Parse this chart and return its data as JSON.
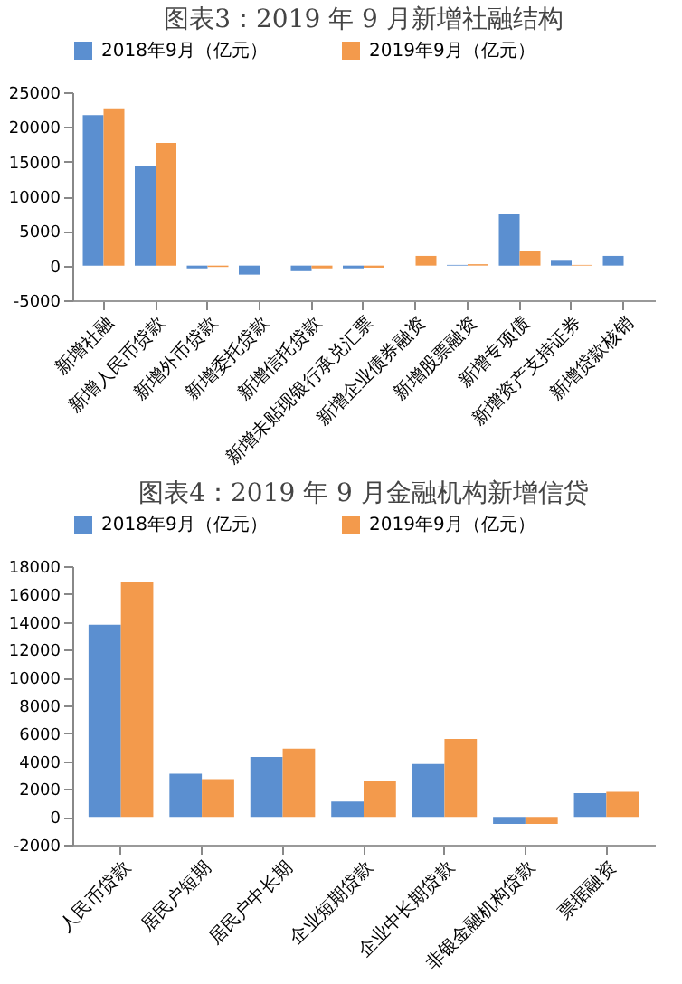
{
  "chart_data": [
    {
      "type": "bar",
      "title": "图表3：2019 年 9 月新增社融结构",
      "categories": [
        "新增社融",
        "新增人民币贷款",
        "新增外币贷款",
        "新增委托贷款",
        "新增信托贷款",
        "新增未贴现银行承兑汇票",
        "新增企业债券融资",
        "新增股票融资",
        "新增专项债",
        "新增资产支持证券",
        "新增贷款核销"
      ],
      "series": [
        {
          "name": "2018年9月（亿元）",
          "color": "#5b8fd0",
          "values": [
            21700,
            14300,
            -400,
            -1300,
            -800,
            -400,
            0,
            100,
            7400,
            700,
            1400
          ]
        },
        {
          "name": "2019年9月（亿元）",
          "color": "#f39a4c",
          "values": [
            22700,
            17700,
            -200,
            null,
            -400,
            -300,
            1400,
            200,
            2100,
            100,
            0
          ]
        }
      ],
      "ylim": [
        -5000,
        25000
      ],
      "yticks": [
        -5000,
        0,
        5000,
        10000,
        15000,
        20000,
        25000
      ],
      "legend": "top",
      "grid": false
    },
    {
      "type": "bar",
      "title": "图表4：2019 年 9 月金融机构新增信贷",
      "categories": [
        "人民币贷款",
        "居民户短期",
        "居民户中长期",
        "企业短期贷款",
        "企业中长期贷款",
        "非银金融机构贷款",
        "票据融资"
      ],
      "series": [
        {
          "name": "2018年9月（亿元）",
          "color": "#5b8fd0",
          "values": [
            13800,
            3100,
            4300,
            1100,
            3800,
            -500,
            1700
          ]
        },
        {
          "name": "2019年9月（亿元）",
          "color": "#f39a4c",
          "values": [
            16900,
            2700,
            4900,
            2600,
            5600,
            -500,
            1800
          ]
        }
      ],
      "ylim": [
        -2000,
        18000
      ],
      "yticks": [
        -2000,
        0,
        2000,
        4000,
        6000,
        8000,
        10000,
        12000,
        14000,
        16000,
        18000
      ],
      "legend": "top",
      "grid": false
    }
  ]
}
